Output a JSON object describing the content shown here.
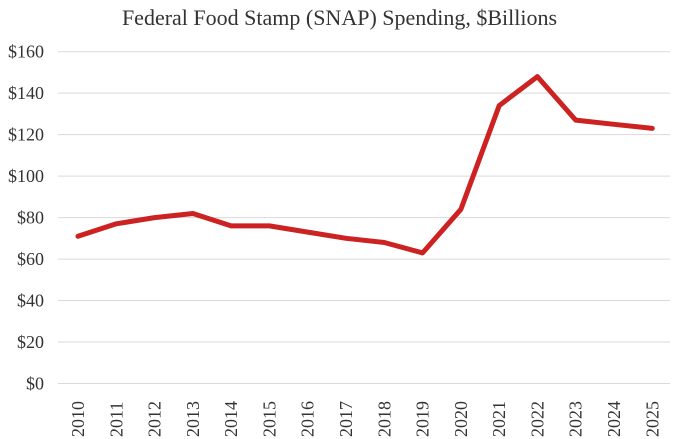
{
  "chart_data": {
    "type": "line",
    "title": "Federal Food Stamp (SNAP) Spending, $Billions",
    "categories": [
      "2010",
      "2011",
      "2012",
      "2013",
      "2014",
      "2015",
      "2016",
      "2017",
      "2018",
      "2019",
      "2020",
      "2021",
      "2022",
      "2023",
      "2024",
      "2025"
    ],
    "series": [
      {
        "name": "Federal SNAP spending ($billions)",
        "color": "#cc2222",
        "values": [
          71,
          77,
          80,
          82,
          76,
          76,
          73,
          70,
          68,
          63,
          84,
          134,
          148,
          127,
          125,
          123
        ]
      }
    ],
    "xlabel": "",
    "ylabel": "",
    "ylim": [
      0,
      160
    ],
    "ytick_step": 20,
    "y_tick_labels": [
      "$160",
      "$140",
      "$120",
      "$100",
      "$80",
      "$60",
      "$40",
      "$20",
      "$0"
    ],
    "grid": "horizontal",
    "gridline_color": "#d9d9d9",
    "legend": false,
    "text_color": "#333333"
  }
}
